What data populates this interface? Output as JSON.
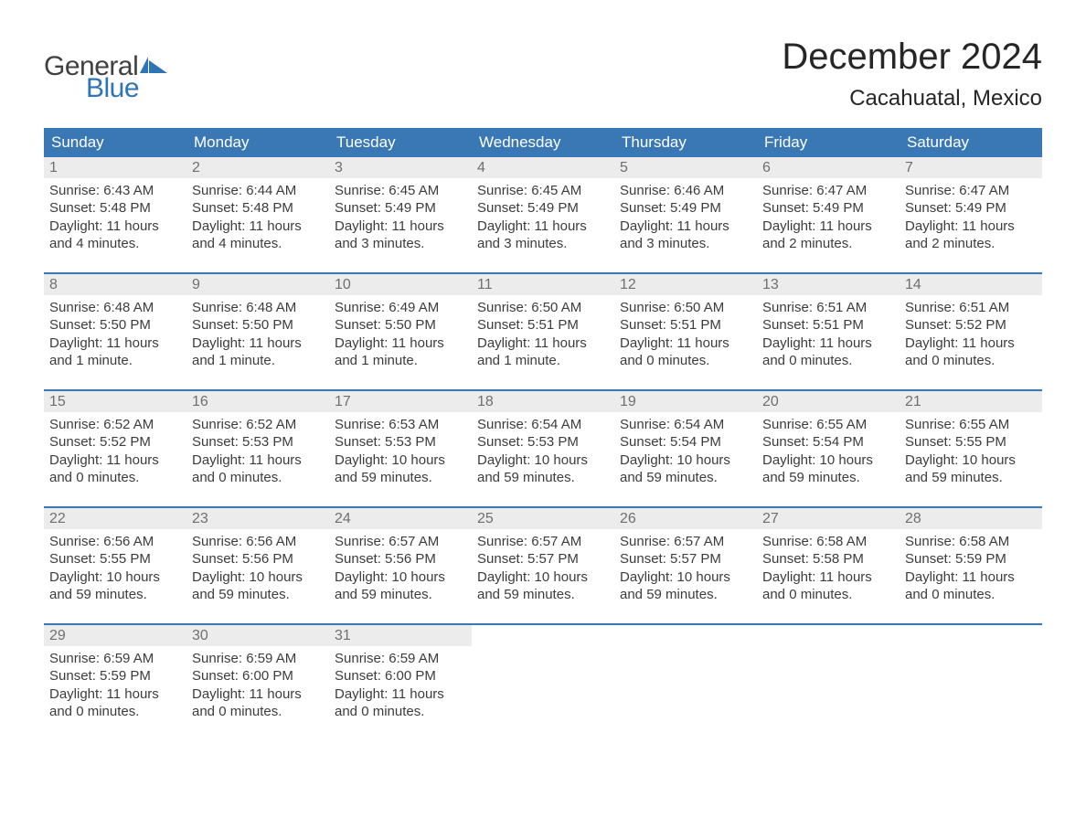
{
  "brand": {
    "word1": "General",
    "word2": "Blue",
    "text_color": "#404040",
    "accent_color": "#2e75b6"
  },
  "title": "December 2024",
  "location": "Cacahuatal, Mexico",
  "colors": {
    "header_bg": "#3a78b5",
    "header_text": "#ffffff",
    "daynum_bg": "#ececec",
    "daynum_text": "#6f6f6f",
    "body_text": "#3c3c3c",
    "week_divider": "#3a78b5",
    "page_bg": "#ffffff"
  },
  "typography": {
    "title_fontsize": 40,
    "location_fontsize": 24,
    "dayheader_fontsize": 17,
    "daynum_fontsize": 16,
    "body_fontsize": 15,
    "font_family": "Arial, Helvetica, sans-serif"
  },
  "day_headers": [
    "Sunday",
    "Monday",
    "Tuesday",
    "Wednesday",
    "Thursday",
    "Friday",
    "Saturday"
  ],
  "weeks": [
    [
      {
        "num": "1",
        "sunrise": "Sunrise: 6:43 AM",
        "sunset": "Sunset: 5:48 PM",
        "day1": "Daylight: 11 hours",
        "day2": "and 4 minutes."
      },
      {
        "num": "2",
        "sunrise": "Sunrise: 6:44 AM",
        "sunset": "Sunset: 5:48 PM",
        "day1": "Daylight: 11 hours",
        "day2": "and 4 minutes."
      },
      {
        "num": "3",
        "sunrise": "Sunrise: 6:45 AM",
        "sunset": "Sunset: 5:49 PM",
        "day1": "Daylight: 11 hours",
        "day2": "and 3 minutes."
      },
      {
        "num": "4",
        "sunrise": "Sunrise: 6:45 AM",
        "sunset": "Sunset: 5:49 PM",
        "day1": "Daylight: 11 hours",
        "day2": "and 3 minutes."
      },
      {
        "num": "5",
        "sunrise": "Sunrise: 6:46 AM",
        "sunset": "Sunset: 5:49 PM",
        "day1": "Daylight: 11 hours",
        "day2": "and 3 minutes."
      },
      {
        "num": "6",
        "sunrise": "Sunrise: 6:47 AM",
        "sunset": "Sunset: 5:49 PM",
        "day1": "Daylight: 11 hours",
        "day2": "and 2 minutes."
      },
      {
        "num": "7",
        "sunrise": "Sunrise: 6:47 AM",
        "sunset": "Sunset: 5:49 PM",
        "day1": "Daylight: 11 hours",
        "day2": "and 2 minutes."
      }
    ],
    [
      {
        "num": "8",
        "sunrise": "Sunrise: 6:48 AM",
        "sunset": "Sunset: 5:50 PM",
        "day1": "Daylight: 11 hours",
        "day2": "and 1 minute."
      },
      {
        "num": "9",
        "sunrise": "Sunrise: 6:48 AM",
        "sunset": "Sunset: 5:50 PM",
        "day1": "Daylight: 11 hours",
        "day2": "and 1 minute."
      },
      {
        "num": "10",
        "sunrise": "Sunrise: 6:49 AM",
        "sunset": "Sunset: 5:50 PM",
        "day1": "Daylight: 11 hours",
        "day2": "and 1 minute."
      },
      {
        "num": "11",
        "sunrise": "Sunrise: 6:50 AM",
        "sunset": "Sunset: 5:51 PM",
        "day1": "Daylight: 11 hours",
        "day2": "and 1 minute."
      },
      {
        "num": "12",
        "sunrise": "Sunrise: 6:50 AM",
        "sunset": "Sunset: 5:51 PM",
        "day1": "Daylight: 11 hours",
        "day2": "and 0 minutes."
      },
      {
        "num": "13",
        "sunrise": "Sunrise: 6:51 AM",
        "sunset": "Sunset: 5:51 PM",
        "day1": "Daylight: 11 hours",
        "day2": "and 0 minutes."
      },
      {
        "num": "14",
        "sunrise": "Sunrise: 6:51 AM",
        "sunset": "Sunset: 5:52 PM",
        "day1": "Daylight: 11 hours",
        "day2": "and 0 minutes."
      }
    ],
    [
      {
        "num": "15",
        "sunrise": "Sunrise: 6:52 AM",
        "sunset": "Sunset: 5:52 PM",
        "day1": "Daylight: 11 hours",
        "day2": "and 0 minutes."
      },
      {
        "num": "16",
        "sunrise": "Sunrise: 6:52 AM",
        "sunset": "Sunset: 5:53 PM",
        "day1": "Daylight: 11 hours",
        "day2": "and 0 minutes."
      },
      {
        "num": "17",
        "sunrise": "Sunrise: 6:53 AM",
        "sunset": "Sunset: 5:53 PM",
        "day1": "Daylight: 10 hours",
        "day2": "and 59 minutes."
      },
      {
        "num": "18",
        "sunrise": "Sunrise: 6:54 AM",
        "sunset": "Sunset: 5:53 PM",
        "day1": "Daylight: 10 hours",
        "day2": "and 59 minutes."
      },
      {
        "num": "19",
        "sunrise": "Sunrise: 6:54 AM",
        "sunset": "Sunset: 5:54 PM",
        "day1": "Daylight: 10 hours",
        "day2": "and 59 minutes."
      },
      {
        "num": "20",
        "sunrise": "Sunrise: 6:55 AM",
        "sunset": "Sunset: 5:54 PM",
        "day1": "Daylight: 10 hours",
        "day2": "and 59 minutes."
      },
      {
        "num": "21",
        "sunrise": "Sunrise: 6:55 AM",
        "sunset": "Sunset: 5:55 PM",
        "day1": "Daylight: 10 hours",
        "day2": "and 59 minutes."
      }
    ],
    [
      {
        "num": "22",
        "sunrise": "Sunrise: 6:56 AM",
        "sunset": "Sunset: 5:55 PM",
        "day1": "Daylight: 10 hours",
        "day2": "and 59 minutes."
      },
      {
        "num": "23",
        "sunrise": "Sunrise: 6:56 AM",
        "sunset": "Sunset: 5:56 PM",
        "day1": "Daylight: 10 hours",
        "day2": "and 59 minutes."
      },
      {
        "num": "24",
        "sunrise": "Sunrise: 6:57 AM",
        "sunset": "Sunset: 5:56 PM",
        "day1": "Daylight: 10 hours",
        "day2": "and 59 minutes."
      },
      {
        "num": "25",
        "sunrise": "Sunrise: 6:57 AM",
        "sunset": "Sunset: 5:57 PM",
        "day1": "Daylight: 10 hours",
        "day2": "and 59 minutes."
      },
      {
        "num": "26",
        "sunrise": "Sunrise: 6:57 AM",
        "sunset": "Sunset: 5:57 PM",
        "day1": "Daylight: 10 hours",
        "day2": "and 59 minutes."
      },
      {
        "num": "27",
        "sunrise": "Sunrise: 6:58 AM",
        "sunset": "Sunset: 5:58 PM",
        "day1": "Daylight: 11 hours",
        "day2": "and 0 minutes."
      },
      {
        "num": "28",
        "sunrise": "Sunrise: 6:58 AM",
        "sunset": "Sunset: 5:59 PM",
        "day1": "Daylight: 11 hours",
        "day2": "and 0 minutes."
      }
    ],
    [
      {
        "num": "29",
        "sunrise": "Sunrise: 6:59 AM",
        "sunset": "Sunset: 5:59 PM",
        "day1": "Daylight: 11 hours",
        "day2": "and 0 minutes."
      },
      {
        "num": "30",
        "sunrise": "Sunrise: 6:59 AM",
        "sunset": "Sunset: 6:00 PM",
        "day1": "Daylight: 11 hours",
        "day2": "and 0 minutes."
      },
      {
        "num": "31",
        "sunrise": "Sunrise: 6:59 AM",
        "sunset": "Sunset: 6:00 PM",
        "day1": "Daylight: 11 hours",
        "day2": "and 0 minutes."
      },
      null,
      null,
      null,
      null
    ]
  ]
}
